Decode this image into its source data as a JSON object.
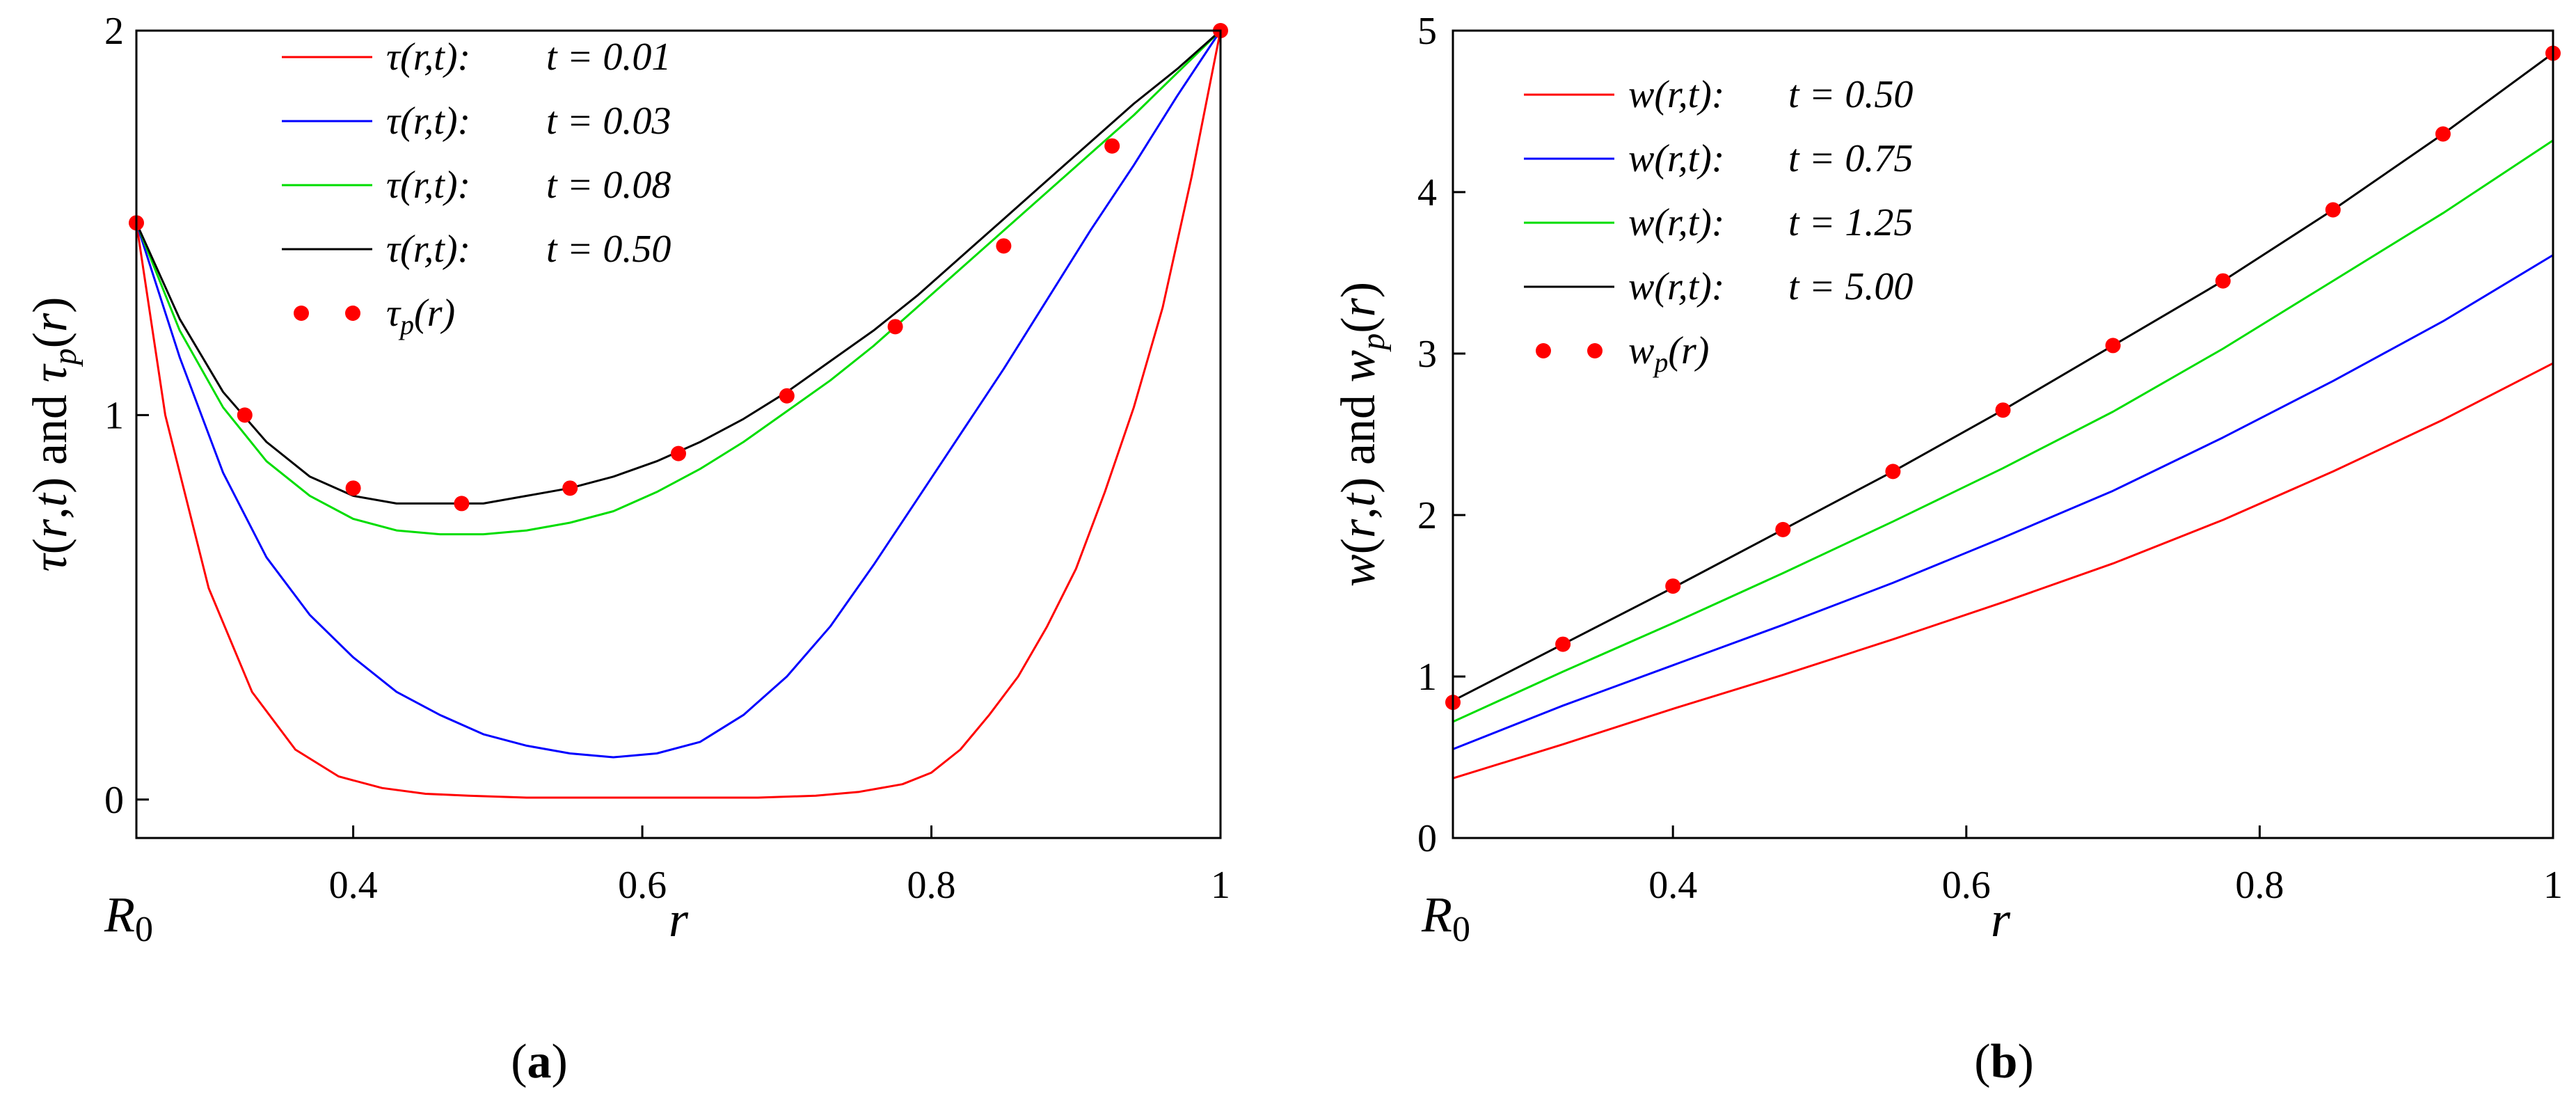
{
  "chart_data": [
    {
      "type": "line",
      "panel_label": {
        "open": "(",
        "letter": "a",
        "close": ")"
      },
      "xlabel": "r",
      "x_extra_label": {
        "base": "R",
        "sub": "0"
      },
      "ylabel": {
        "p1": "τ",
        "p2": "(",
        "p3": "r",
        "p4": ",",
        "p5": "t",
        "p6": ") and ",
        "p7": "τ",
        "p8": "p",
        "p9": "(",
        "p10": "r",
        "p11": ")"
      },
      "xlim": [
        0.25,
        1.0
      ],
      "ylim": [
        -0.1,
        2.0
      ],
      "xticks": [
        0.4,
        0.6,
        0.8,
        1
      ],
      "xtick_labels": [
        "0.4",
        "0.6",
        "0.8",
        "1"
      ],
      "yticks": [
        0,
        1,
        2
      ],
      "ytick_labels": [
        "0",
        "1",
        "2"
      ],
      "legend": {
        "position": "top-left"
      },
      "series": [
        {
          "name": "τ(r,t):  t = 0.01",
          "fn": "τ(r,t):",
          "t": "t = 0.01",
          "color": "#ff0000",
          "x": [
            0.25,
            0.27,
            0.3,
            0.33,
            0.36,
            0.39,
            0.42,
            0.45,
            0.48,
            0.52,
            0.56,
            0.6,
            0.64,
            0.68,
            0.72,
            0.75,
            0.78,
            0.8,
            0.82,
            0.84,
            0.86,
            0.88,
            0.9,
            0.92,
            0.94,
            0.96,
            0.98,
            1.0
          ],
          "y": [
            1.5,
            1.0,
            0.55,
            0.28,
            0.13,
            0.06,
            0.03,
            0.015,
            0.01,
            0.005,
            0.005,
            0.005,
            0.005,
            0.005,
            0.01,
            0.02,
            0.04,
            0.07,
            0.13,
            0.22,
            0.32,
            0.45,
            0.6,
            0.8,
            1.02,
            1.28,
            1.62,
            2.0
          ]
        },
        {
          "name": "τ(r,t):  t = 0.03",
          "fn": "τ(r,t):",
          "t": "t = 0.03",
          "color": "#0000ff",
          "x": [
            0.25,
            0.28,
            0.31,
            0.34,
            0.37,
            0.4,
            0.43,
            0.46,
            0.49,
            0.52,
            0.55,
            0.58,
            0.61,
            0.64,
            0.67,
            0.7,
            0.73,
            0.76,
            0.79,
            0.82,
            0.85,
            0.88,
            0.91,
            0.94,
            0.97,
            1.0
          ],
          "y": [
            1.5,
            1.15,
            0.85,
            0.63,
            0.48,
            0.37,
            0.28,
            0.22,
            0.17,
            0.14,
            0.12,
            0.11,
            0.12,
            0.15,
            0.22,
            0.32,
            0.45,
            0.61,
            0.78,
            0.95,
            1.12,
            1.3,
            1.48,
            1.65,
            1.83,
            2.0
          ]
        },
        {
          "name": "τ(r,t):  t = 0.08",
          "fn": "τ(r,t):",
          "t": "t = 0.08",
          "color": "#00dd00",
          "x": [
            0.25,
            0.28,
            0.31,
            0.34,
            0.37,
            0.4,
            0.43,
            0.46,
            0.49,
            0.52,
            0.55,
            0.58,
            0.61,
            0.64,
            0.67,
            0.7,
            0.73,
            0.76,
            0.79,
            0.82,
            0.85,
            0.88,
            0.91,
            0.94,
            0.97,
            1.0
          ],
          "y": [
            1.5,
            1.22,
            1.02,
            0.88,
            0.79,
            0.73,
            0.7,
            0.69,
            0.69,
            0.7,
            0.72,
            0.75,
            0.8,
            0.86,
            0.93,
            1.01,
            1.09,
            1.18,
            1.28,
            1.38,
            1.48,
            1.58,
            1.68,
            1.78,
            1.89,
            2.0
          ]
        },
        {
          "name": "τ(r,t):  t = 0.50",
          "fn": "τ(r,t):",
          "t": "t = 0.50",
          "color": "#000000",
          "x": [
            0.25,
            0.28,
            0.31,
            0.34,
            0.37,
            0.4,
            0.43,
            0.46,
            0.49,
            0.52,
            0.55,
            0.58,
            0.61,
            0.64,
            0.67,
            0.7,
            0.73,
            0.76,
            0.79,
            0.82,
            0.85,
            0.88,
            0.91,
            0.94,
            0.97,
            1.0
          ],
          "y": [
            1.5,
            1.25,
            1.06,
            0.93,
            0.84,
            0.79,
            0.77,
            0.77,
            0.77,
            0.79,
            0.81,
            0.84,
            0.88,
            0.93,
            0.99,
            1.06,
            1.14,
            1.22,
            1.31,
            1.41,
            1.51,
            1.61,
            1.71,
            1.81,
            1.9,
            2.0
          ]
        }
      ],
      "markers": {
        "name": "τp(r)",
        "fn": "τ",
        "sub": "p",
        "arg": "(r)",
        "color": "#ff0000",
        "x": [
          0.25,
          0.325,
          0.4,
          0.475,
          0.55,
          0.625,
          0.7,
          0.775,
          0.85,
          0.925,
          1.0
        ],
        "y": [
          1.5,
          1.0,
          0.81,
          0.77,
          0.81,
          0.9,
          1.05,
          1.23,
          1.44,
          1.7,
          2.0
        ]
      }
    },
    {
      "type": "line",
      "panel_label": {
        "open": "(",
        "letter": "b",
        "close": ")"
      },
      "xlabel": "r",
      "x_extra_label": {
        "base": "R",
        "sub": "0"
      },
      "ylabel": {
        "p1": "w",
        "p2": "(",
        "p3": "r",
        "p4": ",",
        "p5": "t",
        "p6": ") and ",
        "p7": "w",
        "p8": "p",
        "p9": "(",
        "p10": "r",
        "p11": ")"
      },
      "xlim": [
        0.25,
        1.0
      ],
      "ylim": [
        0,
        5
      ],
      "xticks": [
        0.4,
        0.6,
        0.8,
        1
      ],
      "xtick_labels": [
        "0.4",
        "0.6",
        "0.8",
        "1"
      ],
      "yticks": [
        0,
        1,
        2,
        3,
        4,
        5
      ],
      "ytick_labels": [
        "0",
        "1",
        "2",
        "3",
        "4",
        "5"
      ],
      "legend": {
        "position": "top-left"
      },
      "series": [
        {
          "name": "w(r,t): t = 0.50",
          "fn": "w(r,t):",
          "t": "t = 0.50",
          "color": "#ff0000",
          "x": [
            0.25,
            0.325,
            0.4,
            0.475,
            0.55,
            0.625,
            0.7,
            0.775,
            0.85,
            0.925,
            1.0
          ],
          "y": [
            0.37,
            0.58,
            0.8,
            1.01,
            1.23,
            1.46,
            1.7,
            1.97,
            2.27,
            2.59,
            2.94
          ]
        },
        {
          "name": "w(r,t): t = 0.75",
          "fn": "w(r,t):",
          "t": "t = 0.75",
          "color": "#0000ff",
          "x": [
            0.25,
            0.325,
            0.4,
            0.475,
            0.55,
            0.625,
            0.7,
            0.775,
            0.85,
            0.925,
            1.0
          ],
          "y": [
            0.55,
            0.82,
            1.07,
            1.32,
            1.58,
            1.86,
            2.15,
            2.48,
            2.83,
            3.2,
            3.61
          ]
        },
        {
          "name": "w(r,t): t = 1.25",
          "fn": "w(r,t):",
          "t": "t = 1.25",
          "color": "#00dd00",
          "x": [
            0.25,
            0.325,
            0.4,
            0.475,
            0.55,
            0.625,
            0.7,
            0.775,
            0.85,
            0.925,
            1.0
          ],
          "y": [
            0.72,
            1.03,
            1.33,
            1.64,
            1.96,
            2.29,
            2.64,
            3.03,
            3.45,
            3.87,
            4.32
          ]
        },
        {
          "name": "w(r,t): t = 5.00",
          "fn": "w(r,t):",
          "t": "t = 5.00",
          "color": "#000000",
          "x": [
            0.25,
            0.325,
            0.4,
            0.475,
            0.55,
            0.625,
            0.7,
            0.775,
            0.85,
            0.925,
            1.0
          ],
          "y": [
            0.85,
            1.2,
            1.55,
            1.91,
            2.27,
            2.65,
            3.05,
            3.45,
            3.89,
            4.36,
            4.86
          ]
        }
      ],
      "markers": {
        "name": "wp(r)",
        "fn": "w",
        "sub": "p",
        "arg": "(r)",
        "color": "#ff0000",
        "x": [
          0.25,
          0.325,
          0.4,
          0.475,
          0.55,
          0.625,
          0.7,
          0.775,
          0.85,
          0.925,
          1.0
        ],
        "y": [
          0.84,
          1.2,
          1.56,
          1.91,
          2.27,
          2.65,
          3.05,
          3.45,
          3.89,
          4.36,
          4.86
        ]
      }
    }
  ]
}
